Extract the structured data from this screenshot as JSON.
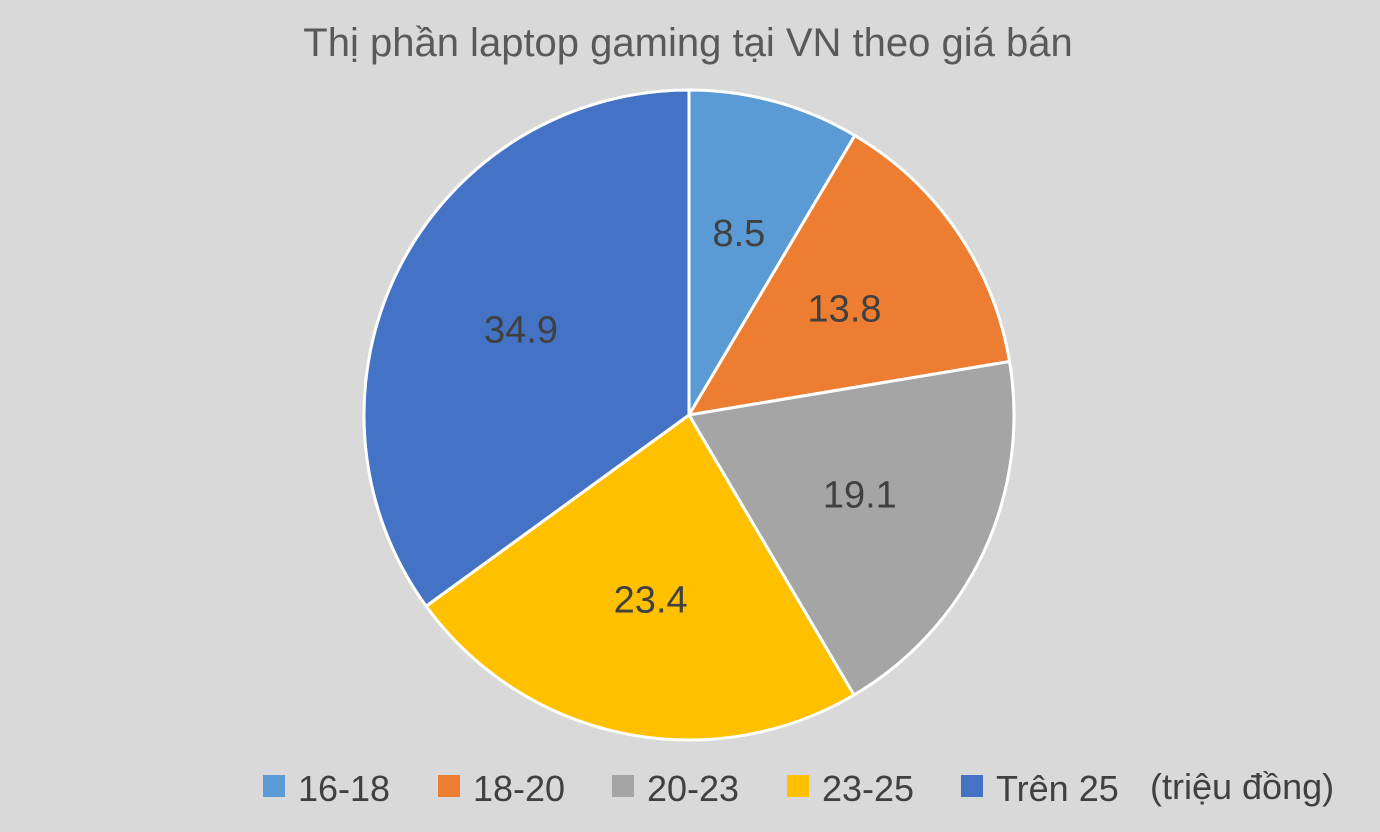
{
  "chart_data": {
    "type": "pie",
    "title": "Thị phần laptop gaming tại VN theo giá bán",
    "categories": [
      "16-18",
      "18-20",
      "20-23",
      "23-25",
      "Trên 25"
    ],
    "values": [
      8.5,
      13.8,
      19.1,
      23.4,
      34.9
    ],
    "data_labels": [
      "8.5",
      "13.8",
      "19.1",
      "23.4",
      "34.9"
    ],
    "colors": [
      "#5b9bd5",
      "#ed7d31",
      "#a5a5a5",
      "#ffc000",
      "#4472c4"
    ],
    "legend_position": "bottom",
    "unit_note": "(triệu đồng)",
    "background": "#d9d9d9"
  }
}
